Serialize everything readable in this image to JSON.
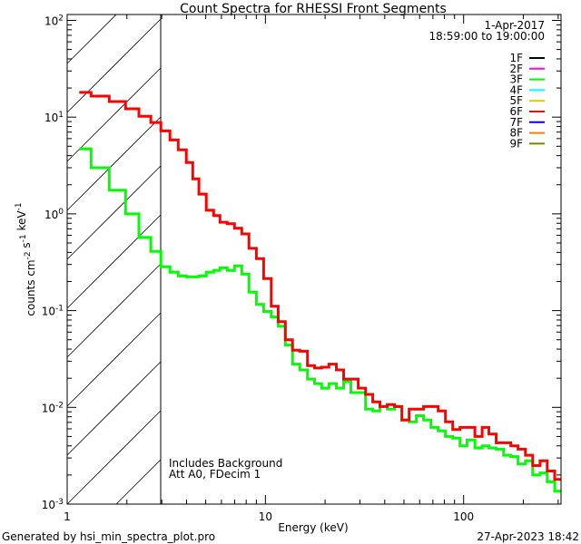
{
  "chart_data": {
    "type": "line",
    "title": "Count Spectra for RHESSI Front Segments",
    "xlabel": "Energy (keV)",
    "ylabel": "counts cm-2 s-1 keV-1",
    "xscale": "log",
    "yscale": "log",
    "xlim": [
      1,
      310
    ],
    "ylim": [
      0.001,
      115
    ],
    "x_ticks": [
      {
        "value": 1,
        "label": "1"
      },
      {
        "value": 10,
        "label": "10"
      },
      {
        "value": 100,
        "label": "100"
      }
    ],
    "y_ticks": [
      {
        "value": 0.001,
        "base": "10",
        "exp": "-3"
      },
      {
        "value": 0.01,
        "base": "10",
        "exp": "-2"
      },
      {
        "value": 0.1,
        "base": "10",
        "exp": "-1"
      },
      {
        "value": 1,
        "base": "10",
        "exp": "0"
      },
      {
        "value": 10,
        "base": "10",
        "exp": "1"
      },
      {
        "value": 100,
        "base": "10",
        "exp": "2"
      }
    ],
    "grid": false,
    "legend_position": "top-right",
    "date": "1-Apr-2017",
    "time_range": "18:59:00 to 19:00:00",
    "excluded_region_keV": [
      1,
      3
    ],
    "annotations": [
      "Includes Background",
      "Att A0, FDecim 1"
    ],
    "legend": [
      {
        "name": "1F",
        "color": "#000000"
      },
      {
        "name": "2F",
        "color": "#ff00ff"
      },
      {
        "name": "3F",
        "color": "#00ff00"
      },
      {
        "name": "4F",
        "color": "#00ffff"
      },
      {
        "name": "5F",
        "color": "#d0d000"
      },
      {
        "name": "6F",
        "color": "#ff0000"
      },
      {
        "name": "7F",
        "color": "#0000ff"
      },
      {
        "name": "8F",
        "color": "#ff8000"
      },
      {
        "name": "9F",
        "color": "#808000"
      }
    ],
    "energy_edges": [
      1.15,
      1.32,
      1.63,
      1.97,
      2.3,
      2.64,
      2.97,
      3.3,
      3.63,
      3.99,
      4.3,
      4.62,
      5.03,
      5.48,
      5.9,
      6.41,
      6.98,
      7.6,
      8.26,
      9.0,
      9.8,
      10.7,
      11.6,
      12.6,
      13.7,
      14.9,
      16.3,
      17.7,
      19.2,
      20.9,
      22.8,
      24.8,
      27.0,
      29.4,
      32.0,
      34.8,
      37.8,
      41.2,
      44.8,
      48.8,
      53.1,
      57.7,
      62.8,
      68.4,
      74.4,
      81.0,
      88.1,
      95.9,
      104,
      114,
      124,
      134,
      146,
      159,
      173,
      188,
      205,
      223,
      243,
      264,
      288,
      310
    ],
    "series": [
      {
        "name": "3F",
        "color": "#00ff00",
        "values": [
          4.7,
          3.0,
          1.76,
          1.0,
          0.57,
          0.41,
          0.284,
          0.249,
          0.228,
          0.223,
          0.223,
          0.228,
          0.249,
          0.26,
          0.277,
          0.26,
          0.29,
          0.238,
          0.155,
          0.116,
          0.098,
          0.086,
          0.069,
          0.044,
          0.028,
          0.0244,
          0.0196,
          0.0176,
          0.0158,
          0.0176,
          0.0158,
          0.0184,
          0.0142,
          0.0142,
          0.0096,
          0.0092,
          0.0102,
          0.0096,
          0.0102,
          0.0074,
          0.0071,
          0.0082,
          0.0074,
          0.0062,
          0.0057,
          0.005,
          0.0048,
          0.004,
          0.0046,
          0.0038,
          0.004,
          0.0038,
          0.0037,
          0.0032,
          0.0031,
          0.0026,
          0.0028,
          0.002,
          0.0021,
          0.0017,
          0.00136
        ]
      },
      {
        "name": "6F",
        "color": "#ff0000",
        "values": [
          18.0,
          16.5,
          14.5,
          12.2,
          10.2,
          8.8,
          7.2,
          5.8,
          4.6,
          3.4,
          2.3,
          1.6,
          1.09,
          0.96,
          0.82,
          0.79,
          0.71,
          0.62,
          0.44,
          0.345,
          0.214,
          0.111,
          0.077,
          0.05,
          0.039,
          0.038,
          0.027,
          0.0255,
          0.026,
          0.028,
          0.0244,
          0.0196,
          0.0196,
          0.0158,
          0.0136,
          0.0114,
          0.0102,
          0.0107,
          0.0102,
          0.0074,
          0.0096,
          0.0096,
          0.0102,
          0.0102,
          0.0092,
          0.0071,
          0.0059,
          0.0062,
          0.0062,
          0.005,
          0.0062,
          0.0053,
          0.0043,
          0.0043,
          0.004,
          0.0037,
          0.0032,
          0.0025,
          0.0028,
          0.0022,
          0.0018
        ]
      }
    ]
  },
  "footer": {
    "generated_by": "Generated by hsi_min_spectra_plot.pro",
    "timestamp": "27-Apr-2023 18:42"
  }
}
